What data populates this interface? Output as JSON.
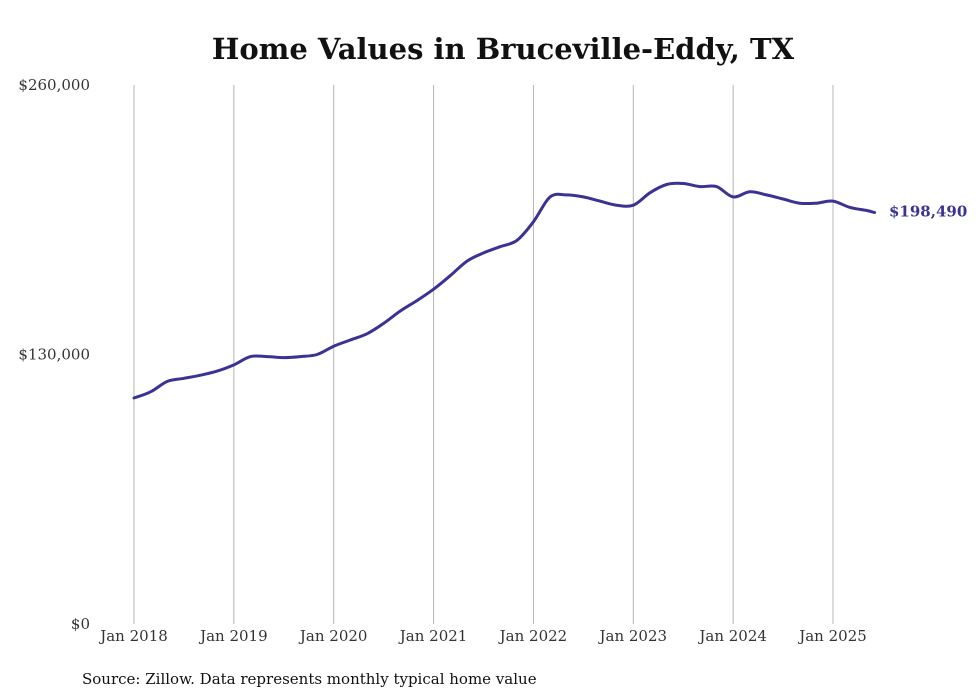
{
  "chart_data": {
    "type": "line",
    "title": "Home Values in Bruceville-Eddy, TX",
    "source": "Source: Zillow. Data represents monthly typical home value",
    "xlabel": "",
    "ylabel": "",
    "ylim": [
      0,
      260000
    ],
    "y_ticks": [
      {
        "value": 0,
        "label": "$0"
      },
      {
        "value": 130000,
        "label": "$130,000"
      },
      {
        "value": 260000,
        "label": "$260,000"
      }
    ],
    "x_ticks": [
      {
        "value": "2018-01",
        "label": "Jan 2018"
      },
      {
        "value": "2019-01",
        "label": "Jan 2019"
      },
      {
        "value": "2020-01",
        "label": "Jan 2020"
      },
      {
        "value": "2021-01",
        "label": "Jan 2021"
      },
      {
        "value": "2022-01",
        "label": "Jan 2022"
      },
      {
        "value": "2023-01",
        "label": "Jan 2023"
      },
      {
        "value": "2024-01",
        "label": "Jan 2024"
      },
      {
        "value": "2025-01",
        "label": "Jan 2025"
      }
    ],
    "grid": "vertical",
    "legend": "none",
    "colors": {
      "line": "#3a3393",
      "end_label": "#3a3393",
      "grid": "#b4b4b4"
    },
    "end_label": "$198,490",
    "series": [
      {
        "x": [
          "2018-01",
          "2018-03",
          "2018-05",
          "2018-07",
          "2018-09",
          "2018-11",
          "2019-01",
          "2019-03",
          "2019-05",
          "2019-07",
          "2019-09",
          "2019-11",
          "2020-01",
          "2020-03",
          "2020-05",
          "2020-07",
          "2020-09",
          "2020-11",
          "2021-01",
          "2021-03",
          "2021-05",
          "2021-07",
          "2021-09",
          "2021-11",
          "2022-01",
          "2022-03",
          "2022-05",
          "2022-07",
          "2022-09",
          "2022-11",
          "2023-01",
          "2023-03",
          "2023-05",
          "2023-07",
          "2023-09",
          "2023-11",
          "2024-01",
          "2024-03",
          "2024-05",
          "2024-07",
          "2024-09",
          "2024-11",
          "2025-01",
          "2025-03",
          "2025-05",
          "2025-06"
        ],
        "values": [
          109000,
          112000,
          117000,
          118500,
          120000,
          122000,
          125000,
          129000,
          129000,
          128500,
          129000,
          130000,
          134000,
          137000,
          140000,
          145000,
          151000,
          156000,
          161500,
          168000,
          175000,
          179000,
          182000,
          185000,
          194000,
          206000,
          207000,
          206000,
          204000,
          202000,
          202000,
          208000,
          212000,
          212500,
          211000,
          211000,
          206000,
          208500,
          207000,
          205000,
          203000,
          203000,
          204000,
          201000,
          199500,
          198490
        ]
      }
    ]
  }
}
